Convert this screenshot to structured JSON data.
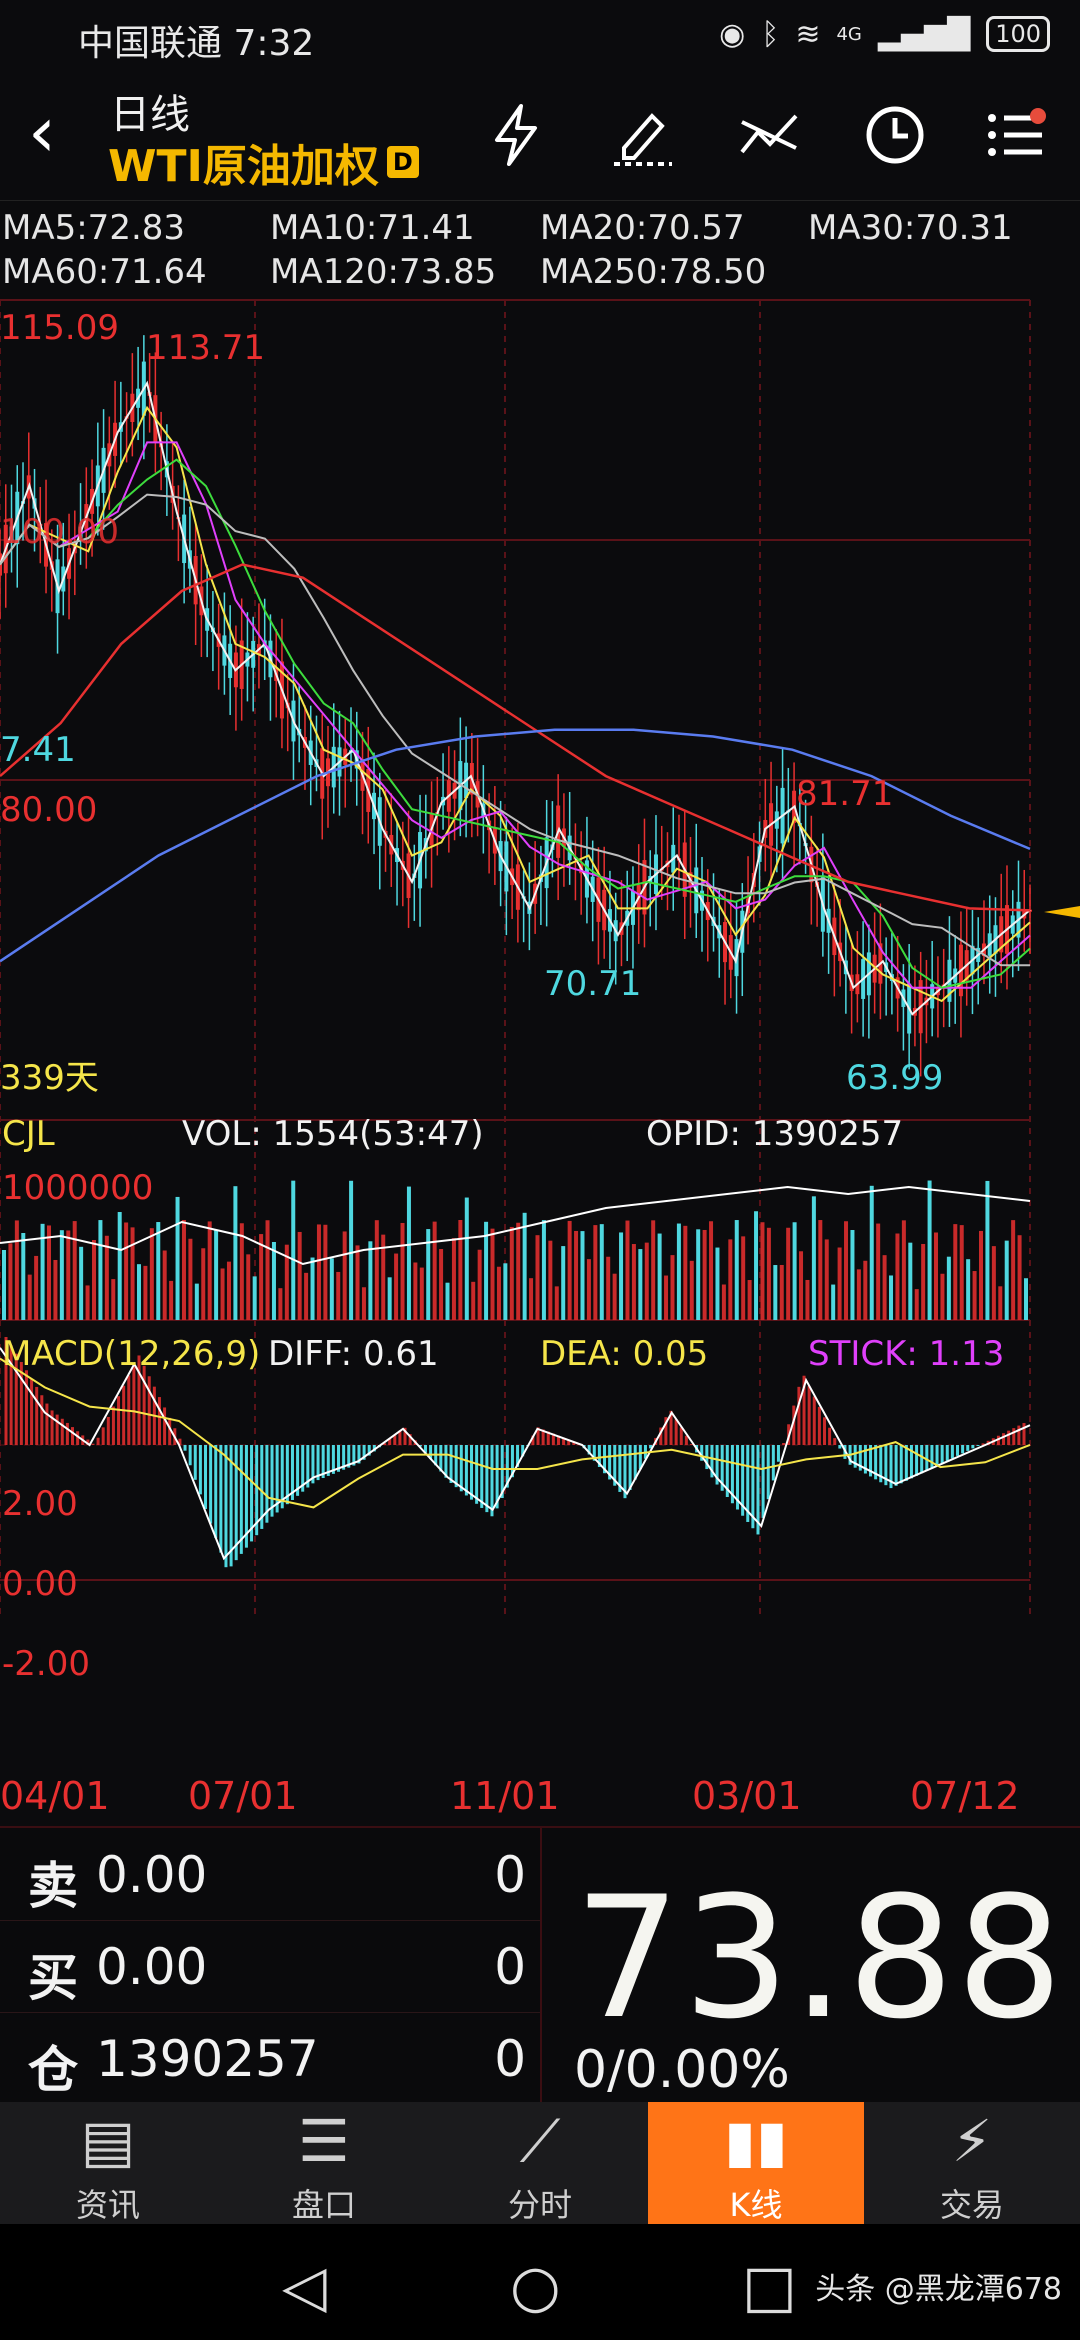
{
  "status_bar": {
    "carrier_time": "中国联通 7:32",
    "network": "4G",
    "battery": "100"
  },
  "header": {
    "period": "日线",
    "instrument": "WTI原油加权",
    "badge": "D"
  },
  "ma_legend": [
    {
      "label": "MA5:72.83",
      "color": "#f2f2f2"
    },
    {
      "label": "MA10:71.41",
      "color": "#f5e54a"
    },
    {
      "label": "MA20:70.57",
      "color": "#e040fb"
    },
    {
      "label": "MA30:70.31",
      "color": "#3ddc3d"
    },
    {
      "label": "MA60:71.64",
      "color": "#bdbdbd"
    },
    {
      "label": "MA120:73.85",
      "color": "#e83030"
    },
    {
      "label": "MA250:78.50",
      "color": "#5a7cf0"
    }
  ],
  "price_chart": {
    "label_115": "115.09",
    "label_113": "113.71",
    "label_100": "100.00",
    "label_97": "7.41",
    "label_80": "80.00",
    "label_81": "81.71",
    "label_70": "70.71",
    "label_63": "63.99",
    "days": "339天"
  },
  "volume": {
    "name": "CJL",
    "vol": "VOL: 1554(53:47)",
    "opid": "OPID: 1390257",
    "scale": "1000000"
  },
  "macd": {
    "name": "MACD(12,26,9)",
    "diff": "DIFF: 0.61",
    "dea": "DEA: 0.05",
    "stick": "STICK: 1.13",
    "up": "2.00",
    "zero": "0.00",
    "down": "-2.00"
  },
  "xaxis": [
    "04/01",
    "07/01",
    "11/01",
    "03/01",
    "07/12"
  ],
  "chart_data": {
    "type": "line",
    "title": "",
    "x": [
      "04/01",
      "07/01",
      "11/01",
      "03/01",
      "07/12"
    ],
    "annotations": {
      "high": 115.09,
      "high2": 113.71,
      "peak2": 81.71,
      "low1": 70.71,
      "low2": 63.99
    },
    "series": [
      {
        "name": "MA5",
        "last": 72.83
      },
      {
        "name": "MA10",
        "last": 71.41
      },
      {
        "name": "MA20",
        "last": 70.57
      },
      {
        "name": "MA30",
        "last": 70.31
      },
      {
        "name": "MA60",
        "last": 71.64
      },
      {
        "name": "MA120",
        "last": 73.85
      },
      {
        "name": "MA250",
        "last": 78.5
      }
    ],
    "close_path": [
      100,
      106,
      98,
      104,
      110,
      113.71,
      104,
      96,
      92,
      94,
      88,
      84,
      86,
      80,
      76,
      82,
      84,
      78,
      74,
      80,
      76,
      72,
      76,
      78,
      74,
      70,
      80,
      81.71,
      74,
      68,
      70,
      66,
      68,
      70,
      72,
      73.88
    ],
    "ma120_path": [
      84,
      88,
      94,
      98,
      100,
      99,
      96,
      93,
      90,
      87,
      84,
      82,
      80,
      78,
      76,
      75,
      74,
      73.85
    ],
    "ma250_path": [
      70,
      74,
      78,
      81,
      84,
      86,
      87,
      87.5,
      87.5,
      87,
      86,
      84,
      81,
      78.5
    ],
    "vol_pct_path": [
      0.55,
      0.6,
      0.5,
      0.7,
      0.6,
      0.4,
      0.5,
      0.55,
      0.6,
      0.7,
      0.8,
      0.85,
      0.9,
      0.95,
      0.9,
      0.95,
      0.9,
      0.85
    ],
    "macd_path": [
      3,
      1,
      0,
      2.5,
      0,
      -3.5,
      -2,
      -1,
      -0.5,
      0.5,
      -1,
      -2,
      0.5,
      0,
      -1.5,
      1,
      -1,
      -2.5,
      2,
      -0.5,
      -1.2,
      -0.6,
      0,
      0.61
    ]
  },
  "order_panel": {
    "sell_tag": "卖",
    "sell_price": "0.00",
    "sell_qty": "0",
    "buy_tag": "买",
    "buy_price": "0.00",
    "buy_qty": "0",
    "pos_tag": "仓",
    "pos_value": "1390257",
    "pos_qty": "0",
    "last_price": "73.88",
    "change": "0/0.00%"
  },
  "tabs": [
    {
      "label": "资讯",
      "icon": "news-icon",
      "glyph": "▤"
    },
    {
      "label": "盘口",
      "icon": "orderbook-icon",
      "glyph": "☰"
    },
    {
      "label": "分时",
      "icon": "timeshare-icon",
      "glyph": "⟋"
    },
    {
      "label": "K线",
      "icon": "candlestick-icon",
      "glyph": "▮▮"
    },
    {
      "label": "交易",
      "icon": "trade-lightning-icon",
      "glyph": "⚡"
    }
  ],
  "active_tab": 3,
  "watermark": "头条 @黑龙潭678"
}
